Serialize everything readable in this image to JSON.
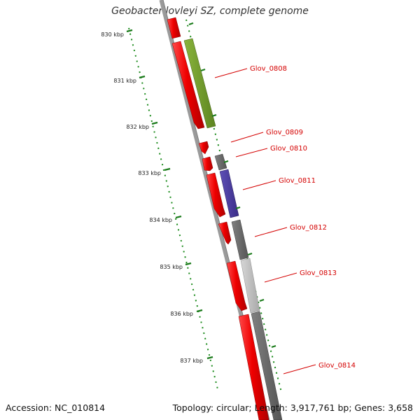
{
  "title": "Geobacter lovleyi SZ, complete genome",
  "footer": {
    "accession": "Accession: NC_010814",
    "summary": "Topology: circular; Length: 3,917,761 bp; Genes: 3,658"
  },
  "colors": {
    "forward_gene": "#e00000",
    "green_gene": "#6e9a28",
    "dark_gray_gene": "#6a6a6a",
    "light_gray_gene": "#c2c2c2",
    "purple_gene": "#4b3c9e",
    "tick": "#1a7a1a",
    "label": "#d40000"
  },
  "ticks": [
    "830 kbp",
    "831 kbp",
    "832 kbp",
    "833 kbp",
    "834 kbp",
    "835 kbp",
    "836 kbp",
    "837 kbp"
  ],
  "gene_labels": [
    "Glov_0808",
    "Glov_0809",
    "Glov_0810",
    "Glov_0811",
    "Glov_0812",
    "Glov_0813",
    "Glov_0814"
  ]
}
